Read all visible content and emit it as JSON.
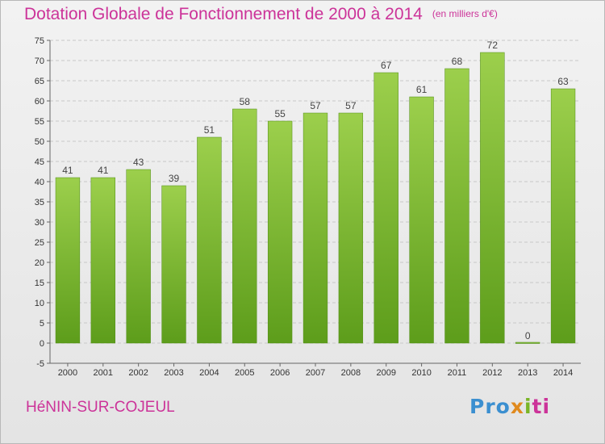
{
  "title": "Dotation Globale de Fonctionnement de 2000 à 2014",
  "unit_note": "(en milliers d'€)",
  "commune": "HéNIN-SUR-COJEUL",
  "logo": {
    "parts": [
      "Pro",
      "x",
      "i",
      "ti"
    ]
  },
  "colors": {
    "bar": "#8cc43c",
    "bar_dark": "#5a9e18",
    "accent": "#cc3399",
    "grid": "#c8c8c8"
  },
  "chart_data": {
    "type": "bar",
    "title": "Dotation Globale de Fonctionnement de 2000 à 2014",
    "subtitle": "(en milliers d'€)",
    "categories": [
      "2000",
      "2001",
      "2002",
      "2003",
      "2004",
      "2005",
      "2006",
      "2007",
      "2008",
      "2009",
      "2010",
      "2011",
      "2012",
      "2013",
      "2014"
    ],
    "values": [
      41,
      41,
      43,
      39,
      51,
      58,
      55,
      57,
      57,
      67,
      61,
      68,
      72,
      0,
      63
    ],
    "ylim": [
      -5,
      75
    ],
    "yticks": [
      -5,
      0,
      5,
      10,
      15,
      20,
      25,
      30,
      35,
      40,
      45,
      50,
      55,
      60,
      65,
      70,
      75
    ],
    "grid": true,
    "xlabel": "",
    "ylabel": ""
  }
}
